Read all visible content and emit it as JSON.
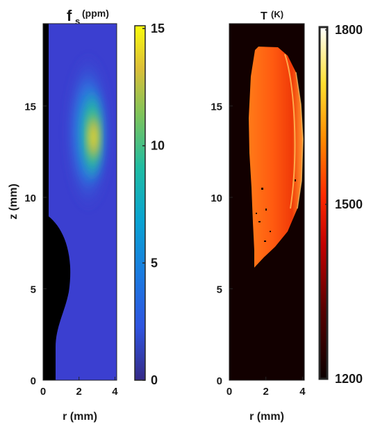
{
  "chart_data": [
    {
      "type": "heatmap",
      "title_main": "f",
      "title_sub": "s",
      "title_unit": "(ppm)",
      "xlabel": "r (mm)",
      "ylabel": "z (mm)",
      "xlim": [
        0,
        4.1
      ],
      "ylim": [
        0,
        19.5
      ],
      "xticks": [
        "0",
        "2",
        "4"
      ],
      "yticks": [
        "0",
        "5",
        "10",
        "15"
      ],
      "colorbar": {
        "min": 0,
        "max": 15,
        "ticks": [
          "0",
          "5",
          "10",
          "15"
        ],
        "colormap": "parula"
      },
      "background_value": 0.5,
      "features": {
        "peak_value": 15,
        "peak_r": 2.8,
        "peak_z": 13.3,
        "black_region": "nozzle / no data at small r, z < 9"
      }
    },
    {
      "type": "heatmap",
      "title_main": "T",
      "title_unit": "(K)",
      "xlabel": "r (mm)",
      "ylabel": "",
      "xlim": [
        0,
        4.1
      ],
      "ylim": [
        0,
        19.5
      ],
      "xticks": [
        "0",
        "2",
        "4"
      ],
      "yticks": [
        "0",
        "5",
        "10",
        "15"
      ],
      "colorbar": {
        "min": 1200,
        "max": 1800,
        "ticks": [
          "1200",
          "1500",
          "1800"
        ],
        "colormap": "hot"
      },
      "features": {
        "measured_region_r": [
          1.4,
          4.0
        ],
        "measured_region_z": [
          6.2,
          18.3
        ],
        "typical_value": 1600,
        "peak_value": 1720
      }
    }
  ],
  "colors": {
    "left_background": "#3b3fd0",
    "right_background": "#120000",
    "axis": "#262626"
  }
}
